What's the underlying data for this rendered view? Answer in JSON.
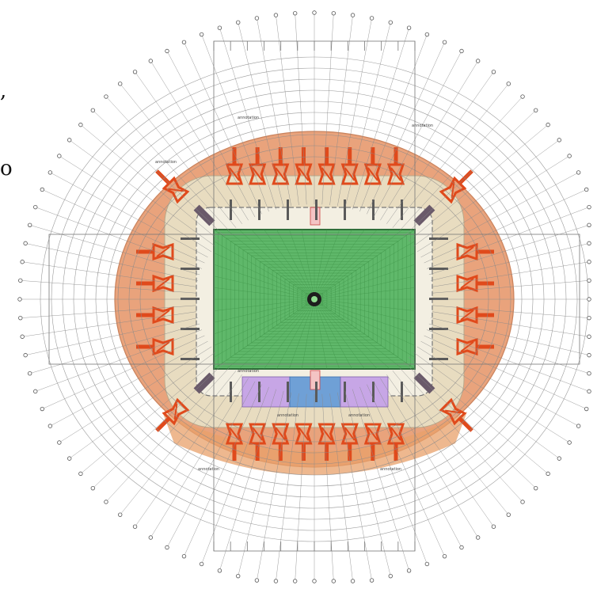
{
  "page": {
    "fragments": [
      ",",
      "o"
    ]
  },
  "drawing": {
    "type": "stadium-plan",
    "pitch_tiers": 24,
    "radial_lines_count": 96,
    "ring_count": 10,
    "stairs_per_side": 8,
    "colors": {
      "background": "#ffffff",
      "outer_concourse": "#e9a37c",
      "outer_concourse_south": "#e8a06a",
      "seating_bowl": "#e8dcc0",
      "pitch": "#5fb86a",
      "pitch_dark": "#3f9448",
      "stair_red": "#e04a1c",
      "grid_line": "#8a8a8a",
      "purple_block": "#c7a6e6",
      "blue_block": "#6fa0d6",
      "tunnel_pink": "#f4c4c4"
    },
    "labels": [
      "annotation",
      "annotation",
      "annotation",
      "annotation",
      "annotation",
      "annotation",
      "annotation",
      "annotation"
    ]
  }
}
